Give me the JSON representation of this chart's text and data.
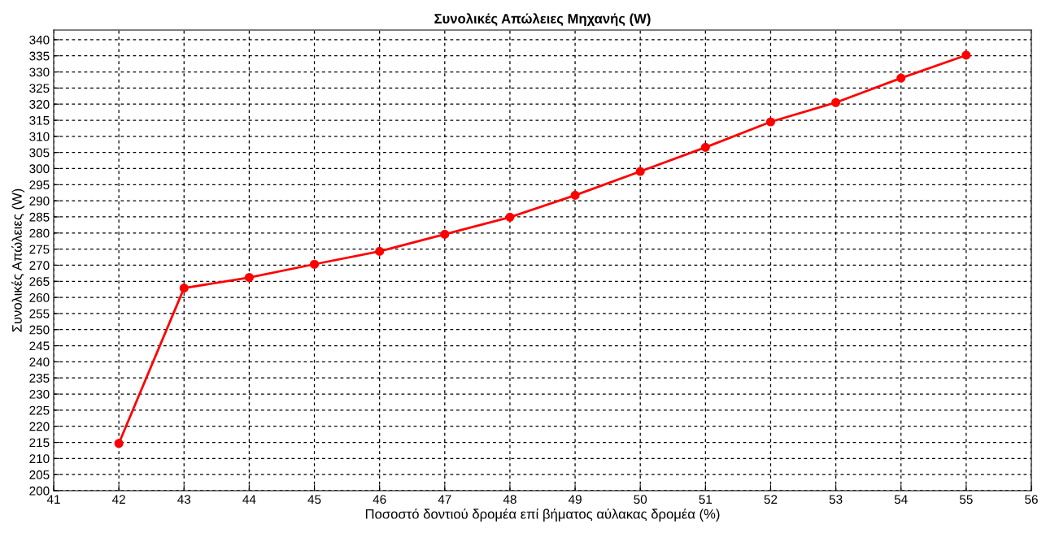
{
  "chart_data": {
    "type": "line",
    "title": "Συνολικές Απώλειες Μηχανής (W)",
    "xlabel": "Ποσοστό δοντιού δρομέα επί βήματος αύλακας δρομέα (%)",
    "ylabel": "Συνολικές Απώλειες (W)",
    "x": [
      42,
      43,
      44,
      45,
      46,
      47,
      48,
      49,
      50,
      51,
      52,
      53,
      54,
      55
    ],
    "series": [
      {
        "color": "#ff0000",
        "values": [
          214.7,
          262.9,
          266.2,
          270.3,
          274.3,
          279.6,
          284.9,
          291.7,
          299.1,
          306.6,
          314.5,
          320.5,
          328.1,
          335.2
        ]
      }
    ],
    "xlim": [
      41,
      56
    ],
    "xticks": [
      41,
      42,
      43,
      44,
      45,
      46,
      47,
      48,
      49,
      50,
      51,
      52,
      53,
      54,
      55,
      56
    ],
    "ylim": [
      200,
      343
    ],
    "yticks": [
      200,
      205,
      210,
      215,
      220,
      225,
      230,
      235,
      240,
      245,
      250,
      255,
      260,
      265,
      270,
      275,
      280,
      285,
      290,
      295,
      300,
      305,
      310,
      315,
      320,
      325,
      330,
      335,
      340
    ],
    "grid": true,
    "marker": "circle",
    "line_style": "solid"
  }
}
